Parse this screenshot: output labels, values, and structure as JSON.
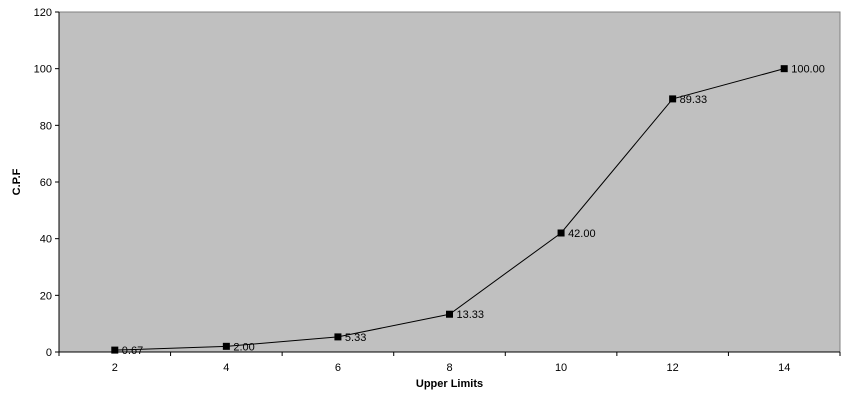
{
  "chart_data": {
    "type": "line",
    "title": "",
    "xlabel": "Upper Limits",
    "ylabel": "C.P.F",
    "x": [
      2,
      4,
      6,
      8,
      10,
      12,
      14
    ],
    "x_ticks": [
      2,
      4,
      6,
      8,
      10,
      12,
      14
    ],
    "y_ticks": [
      0,
      20,
      40,
      60,
      80,
      100,
      120
    ],
    "ylim": [
      0,
      120
    ],
    "series": [
      {
        "values": [
          0.67,
          2.0,
          5.33,
          13.33,
          42.0,
          89.33,
          100.0
        ],
        "labels": [
          "0.67",
          "2.00",
          "5.33",
          "13.33",
          "42.00",
          "89.33",
          "100.00"
        ],
        "color": "#000000",
        "marker": "square"
      }
    ],
    "plot_background": "#c0c0c0",
    "grid": false,
    "legend": "none"
  }
}
